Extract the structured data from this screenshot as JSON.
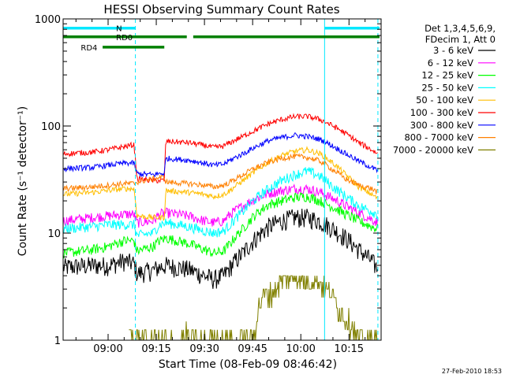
{
  "chart_data": {
    "type": "line",
    "title": "HESSI Observing Summary Count Rates",
    "xlabel": "Start Time (08-Feb-09 08:46:42)",
    "ylabel": "Count Rate (s⁻¹ detector⁻¹)",
    "yscale": "log",
    "ylim": [
      1,
      1000
    ],
    "xlim": [
      "08:46:42",
      "10:25:42"
    ],
    "x_ticks": [
      "09:00",
      "09:15",
      "09:30",
      "09:45",
      "10:00",
      "10:15"
    ],
    "x_tick_minutes": [
      0,
      15,
      30,
      45,
      60,
      75
    ],
    "y_ticks": [
      "1",
      "10",
      "100",
      "1000"
    ],
    "y_tick_values": [
      1,
      10,
      100,
      1000
    ],
    "grid": false,
    "legend_position": "right",
    "legend_header": [
      "Det 1,3,4,5,6,9,",
      "FDecim 1, Att 0"
    ],
    "stamp": "27-Feb-2010 18:53",
    "vlines": [
      {
        "minute": -14.0,
        "style": "solid"
      },
      {
        "minute": 8.5,
        "style": "dashed"
      },
      {
        "minute": 67.4,
        "style": "solid"
      },
      {
        "minute": 84.0,
        "style": "dashed"
      }
    ],
    "flags": [
      {
        "label": "N",
        "color": "#00e8ff",
        "y": 820,
        "segments": [
          [
            -14,
            8.5
          ],
          [
            67.4,
            84.5
          ]
        ]
      },
      {
        "label": "RD0",
        "color": "#008000",
        "y": 680,
        "segments": [
          [
            -14,
            24.5
          ],
          [
            26.5,
            84.5
          ]
        ]
      },
      {
        "label": "RD4",
        "color": "#008000",
        "y": 545,
        "segments": [
          [
            -1.7,
            17.5
          ]
        ]
      }
    ],
    "series": [
      {
        "name": "3 - 6 keV",
        "color": "#000000",
        "values": [
          [
            -14,
            4.8
          ],
          [
            -5,
            5.0
          ],
          [
            0,
            5.0
          ],
          [
            5,
            5.5
          ],
          [
            8,
            5.2
          ],
          [
            9,
            4.2
          ],
          [
            14,
            4.5
          ],
          [
            16,
            4.8
          ],
          [
            18,
            5.0
          ],
          [
            25,
            4.6
          ],
          [
            30,
            4.0
          ],
          [
            33,
            3.7
          ],
          [
            36,
            4.0
          ],
          [
            38,
            4.8
          ],
          [
            42,
            6.5
          ],
          [
            46,
            9.0
          ],
          [
            50,
            11.5
          ],
          [
            54,
            13.0
          ],
          [
            58,
            14.0
          ],
          [
            62,
            14.0
          ],
          [
            66,
            13.0
          ],
          [
            70,
            11.0
          ],
          [
            74,
            9.0
          ],
          [
            78,
            7.0
          ],
          [
            82,
            5.5
          ],
          [
            84,
            4.6
          ]
        ]
      },
      {
        "name": "6 - 12 keV",
        "color": "#ff00ff",
        "values": [
          [
            -14,
            13.0
          ],
          [
            -5,
            14.0
          ],
          [
            0,
            14.5
          ],
          [
            5,
            15.0
          ],
          [
            8,
            15.0
          ],
          [
            9,
            12.5
          ],
          [
            14,
            13.0
          ],
          [
            16,
            15.0
          ],
          [
            18,
            15.5
          ],
          [
            25,
            14.5
          ],
          [
            30,
            13.0
          ],
          [
            33,
            12.5
          ],
          [
            36,
            13.0
          ],
          [
            38,
            15.0
          ],
          [
            42,
            18.0
          ],
          [
            46,
            21.0
          ],
          [
            50,
            23.5
          ],
          [
            54,
            25.0
          ],
          [
            58,
            26.0
          ],
          [
            62,
            26.0
          ],
          [
            66,
            24.0
          ],
          [
            70,
            21.0
          ],
          [
            74,
            18.0
          ],
          [
            78,
            15.5
          ],
          [
            82,
            13.5
          ],
          [
            84,
            12.5
          ]
        ]
      },
      {
        "name": "12 - 25 keV",
        "color": "#00ff00",
        "values": [
          [
            -14,
            6.5
          ],
          [
            -5,
            7.0
          ],
          [
            0,
            7.5
          ],
          [
            5,
            8.5
          ],
          [
            8,
            8.5
          ],
          [
            9,
            6.8
          ],
          [
            14,
            7.5
          ],
          [
            16,
            8.5
          ],
          [
            18,
            9.0
          ],
          [
            25,
            8.0
          ],
          [
            30,
            7.0
          ],
          [
            33,
            6.5
          ],
          [
            36,
            6.8
          ],
          [
            38,
            8.0
          ],
          [
            42,
            11.0
          ],
          [
            46,
            15.0
          ],
          [
            50,
            18.5
          ],
          [
            54,
            20.0
          ],
          [
            58,
            21.5
          ],
          [
            62,
            22.0
          ],
          [
            66,
            20.0
          ],
          [
            70,
            17.5
          ],
          [
            74,
            15.0
          ],
          [
            78,
            13.0
          ],
          [
            82,
            11.5
          ],
          [
            84,
            11.0
          ]
        ]
      },
      {
        "name": "25 - 50 keV",
        "color": "#00ffff",
        "values": [
          [
            -14,
            11.0
          ],
          [
            -5,
            11.5
          ],
          [
            0,
            12.0
          ],
          [
            5,
            12.0
          ],
          [
            8,
            12.0
          ],
          [
            9,
            9.5
          ],
          [
            14,
            10.0
          ],
          [
            16,
            12.0
          ],
          [
            18,
            12.5
          ],
          [
            25,
            11.5
          ],
          [
            30,
            10.5
          ],
          [
            33,
            10.0
          ],
          [
            36,
            10.5
          ],
          [
            38,
            12.0
          ],
          [
            42,
            16.0
          ],
          [
            46,
            21.0
          ],
          [
            50,
            26.0
          ],
          [
            54,
            31.0
          ],
          [
            58,
            35.0
          ],
          [
            62,
            38.0
          ],
          [
            66,
            34.0
          ],
          [
            70,
            27.0
          ],
          [
            74,
            22.0
          ],
          [
            78,
            18.0
          ],
          [
            82,
            16.0
          ],
          [
            84,
            15.0
          ]
        ]
      },
      {
        "name": "50 - 100 keV",
        "color": "#ffbe00",
        "values": [
          [
            -14,
            23.0
          ],
          [
            -5,
            24.0
          ],
          [
            0,
            25.0
          ],
          [
            5,
            26.0
          ],
          [
            8,
            26.0
          ],
          [
            9,
            14.5
          ],
          [
            14,
            14.0
          ],
          [
            16,
            14.0
          ],
          [
            17.5,
            14.0
          ],
          [
            18,
            25.0
          ],
          [
            25,
            24.0
          ],
          [
            30,
            23.0
          ],
          [
            33,
            22.0
          ],
          [
            36,
            23.0
          ],
          [
            38,
            25.0
          ],
          [
            42,
            31.0
          ],
          [
            46,
            38.0
          ],
          [
            50,
            46.0
          ],
          [
            54,
            53.0
          ],
          [
            58,
            58.0
          ],
          [
            62,
            60.0
          ],
          [
            66,
            55.0
          ],
          [
            70,
            45.0
          ],
          [
            74,
            35.0
          ],
          [
            78,
            27.0
          ],
          [
            82,
            23.0
          ],
          [
            84,
            21.0
          ]
        ]
      },
      {
        "name": "100 - 300 keV",
        "color": "#ff0000",
        "values": [
          [
            -14,
            55.0
          ],
          [
            -5,
            57.0
          ],
          [
            0,
            60.0
          ],
          [
            5,
            64.0
          ],
          [
            8,
            67.0
          ],
          [
            9,
            32.0
          ],
          [
            14,
            31.0
          ],
          [
            16,
            31.0
          ],
          [
            17.5,
            31.0
          ],
          [
            18,
            72.0
          ],
          [
            25,
            70.0
          ],
          [
            30,
            66.0
          ],
          [
            33,
            63.0
          ],
          [
            36,
            65.0
          ],
          [
            38,
            70.0
          ],
          [
            42,
            80.0
          ],
          [
            46,
            92.0
          ],
          [
            50,
            105.0
          ],
          [
            54,
            115.0
          ],
          [
            58,
            122.0
          ],
          [
            62,
            123.0
          ],
          [
            66,
            115.0
          ],
          [
            70,
            100.0
          ],
          [
            74,
            85.0
          ],
          [
            78,
            70.0
          ],
          [
            82,
            60.0
          ],
          [
            84,
            55.0
          ]
        ]
      },
      {
        "name": "300 - 800 keV",
        "color": "#0000ff",
        "values": [
          [
            -14,
            40.0
          ],
          [
            -5,
            41.0
          ],
          [
            0,
            43.0
          ],
          [
            5,
            45.0
          ],
          [
            8,
            45.0
          ],
          [
            9,
            36.0
          ],
          [
            14,
            35.0
          ],
          [
            16,
            36.0
          ],
          [
            17.5,
            36.0
          ],
          [
            18,
            50.0
          ],
          [
            25,
            48.0
          ],
          [
            30,
            45.0
          ],
          [
            33,
            43.0
          ],
          [
            36,
            44.0
          ],
          [
            38,
            48.0
          ],
          [
            42,
            55.0
          ],
          [
            46,
            64.0
          ],
          [
            50,
            73.0
          ],
          [
            54,
            78.0
          ],
          [
            58,
            82.0
          ],
          [
            62,
            80.0
          ],
          [
            66,
            75.0
          ],
          [
            70,
            65.0
          ],
          [
            74,
            55.0
          ],
          [
            78,
            47.0
          ],
          [
            82,
            41.0
          ],
          [
            84,
            38.0
          ]
        ]
      },
      {
        "name": "800 - 7000 keV",
        "color": "#ff8000",
        "values": [
          [
            -14,
            26.0
          ],
          [
            -5,
            27.0
          ],
          [
            0,
            28.0
          ],
          [
            5,
            29.0
          ],
          [
            8,
            29.0
          ],
          [
            9,
            30.0
          ],
          [
            14,
            32.0
          ],
          [
            16,
            33.0
          ],
          [
            17.5,
            33.0
          ],
          [
            18,
            30.0
          ],
          [
            25,
            29.0
          ],
          [
            30,
            28.0
          ],
          [
            33,
            27.0
          ],
          [
            36,
            28.0
          ],
          [
            38,
            30.0
          ],
          [
            42,
            35.0
          ],
          [
            46,
            41.0
          ],
          [
            50,
            46.0
          ],
          [
            54,
            50.0
          ],
          [
            58,
            52.0
          ],
          [
            62,
            51.0
          ],
          [
            66,
            47.0
          ],
          [
            70,
            39.0
          ],
          [
            74,
            32.0
          ],
          [
            78,
            28.0
          ],
          [
            82,
            26.0
          ],
          [
            84,
            24.0
          ]
        ]
      },
      {
        "name": "7000 - 20000 keV",
        "color": "#808000",
        "values": [
          [
            6.5,
            1.0
          ],
          [
            7,
            1.25
          ],
          [
            8,
            1.0
          ],
          [
            24,
            1.0
          ],
          [
            24.5,
            1.25
          ],
          [
            25,
            1.0
          ],
          [
            45,
            1.0
          ],
          [
            46,
            1.5
          ],
          [
            47,
            2.0
          ],
          [
            48,
            2.5
          ],
          [
            49,
            2.8
          ],
          [
            50,
            2.6
          ],
          [
            52,
            3.0
          ],
          [
            54,
            3.5
          ],
          [
            56,
            3.8
          ],
          [
            58,
            4.0
          ],
          [
            60,
            3.7
          ],
          [
            62,
            3.5
          ],
          [
            64,
            3.8
          ],
          [
            66,
            3.5
          ],
          [
            68,
            3.0
          ],
          [
            70,
            2.5
          ],
          [
            72,
            2.0
          ],
          [
            74,
            1.6
          ],
          [
            76,
            1.3
          ],
          [
            78,
            1.0
          ],
          [
            84,
            1.0
          ]
        ]
      }
    ]
  }
}
